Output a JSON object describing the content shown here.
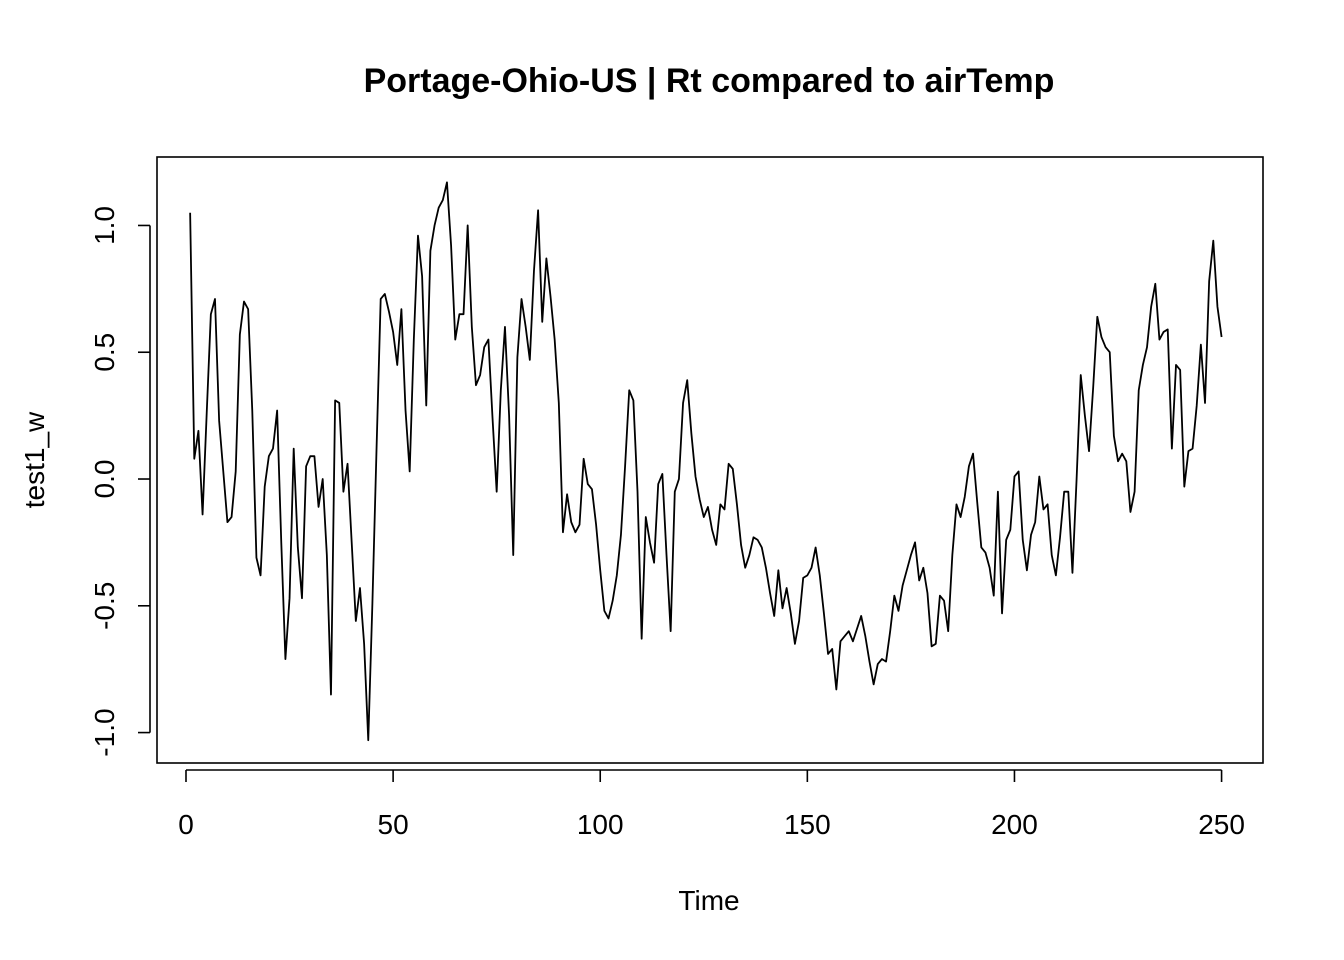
{
  "chart_data": {
    "type": "line",
    "title": "Portage-Ohio-US | Rt compared to airTemp",
    "xlabel": "Time",
    "ylabel": "test1_w",
    "xlim": [
      -7,
      260
    ],
    "ylim": [
      -1.12,
      1.27
    ],
    "xticks": [
      0,
      50,
      100,
      150,
      200,
      250
    ],
    "yticks": [
      -1.0,
      -0.5,
      0.0,
      0.5,
      1.0
    ],
    "xtick_labels": [
      "0",
      "50",
      "100",
      "150",
      "200",
      "250"
    ],
    "ytick_labels": [
      "-1.0",
      "-0.5",
      "0.0",
      "0.5",
      "1.0"
    ],
    "grid": false,
    "series": [
      {
        "x_start": 1,
        "x_step": 1,
        "values": [
          1.05,
          0.08,
          0.19,
          -0.14,
          0.26,
          0.65,
          0.71,
          0.23,
          0.03,
          -0.17,
          -0.15,
          0.03,
          0.57,
          0.7,
          0.67,
          0.27,
          -0.31,
          -0.38,
          -0.03,
          0.09,
          0.12,
          0.27,
          -0.25,
          -0.71,
          -0.47,
          0.12,
          -0.27,
          -0.47,
          0.05,
          0.09,
          0.09,
          -0.11,
          0.0,
          -0.3,
          -0.85,
          0.31,
          0.3,
          -0.05,
          0.06,
          -0.25,
          -0.56,
          -0.43,
          -0.65,
          -1.03,
          -0.49,
          0.12,
          0.71,
          0.73,
          0.66,
          0.58,
          0.45,
          0.67,
          0.27,
          0.03,
          0.55,
          0.96,
          0.8,
          0.29,
          0.9,
          1.0,
          1.07,
          1.1,
          1.17,
          0.92,
          0.55,
          0.65,
          0.65,
          1.0,
          0.6,
          0.37,
          0.41,
          0.52,
          0.55,
          0.24,
          -0.05,
          0.35,
          0.6,
          0.25,
          -0.3,
          0.48,
          0.71,
          0.6,
          0.47,
          0.82,
          1.06,
          0.62,
          0.87,
          0.72,
          0.55,
          0.3,
          -0.21,
          -0.06,
          -0.17,
          -0.21,
          -0.18,
          0.08,
          -0.02,
          -0.04,
          -0.18,
          -0.36,
          -0.52,
          -0.55,
          -0.48,
          -0.38,
          -0.22,
          0.05,
          0.35,
          0.31,
          -0.05,
          -0.63,
          -0.15,
          -0.25,
          -0.33,
          -0.02,
          0.02,
          -0.3,
          -0.6,
          -0.05,
          0.0,
          0.3,
          0.39,
          0.18,
          0.01,
          -0.08,
          -0.15,
          -0.11,
          -0.2,
          -0.26,
          -0.1,
          -0.12,
          0.06,
          0.04,
          -0.1,
          -0.26,
          -0.35,
          -0.3,
          -0.23,
          -0.24,
          -0.27,
          -0.35,
          -0.45,
          -0.54,
          -0.36,
          -0.51,
          -0.43,
          -0.53,
          -0.65,
          -0.56,
          -0.39,
          -0.38,
          -0.35,
          -0.27,
          -0.38,
          -0.53,
          -0.69,
          -0.67,
          -0.83,
          -0.64,
          -0.62,
          -0.6,
          -0.64,
          -0.59,
          -0.54,
          -0.62,
          -0.72,
          -0.81,
          -0.73,
          -0.71,
          -0.72,
          -0.6,
          -0.46,
          -0.52,
          -0.42,
          -0.36,
          -0.3,
          -0.25,
          -0.4,
          -0.35,
          -0.45,
          -0.66,
          -0.65,
          -0.46,
          -0.48,
          -0.6,
          -0.3,
          -0.1,
          -0.15,
          -0.07,
          0.05,
          0.1,
          -0.09,
          -0.27,
          -0.29,
          -0.35,
          -0.46,
          -0.05,
          -0.53,
          -0.24,
          -0.2,
          0.01,
          0.03,
          -0.24,
          -0.36,
          -0.22,
          -0.17,
          0.01,
          -0.12,
          -0.1,
          -0.3,
          -0.38,
          -0.23,
          -0.05,
          -0.05,
          -0.37,
          0.0,
          0.41,
          0.25,
          0.11,
          0.36,
          0.64,
          0.56,
          0.52,
          0.5,
          0.17,
          0.07,
          0.1,
          0.07,
          -0.13,
          -0.05,
          0.35,
          0.45,
          0.52,
          0.68,
          0.77,
          0.55,
          0.58,
          0.59,
          0.12,
          0.45,
          0.43,
          -0.03,
          0.11,
          0.12,
          0.29,
          0.53,
          0.3,
          0.78,
          0.94,
          0.68,
          0.56
        ]
      }
    ]
  }
}
